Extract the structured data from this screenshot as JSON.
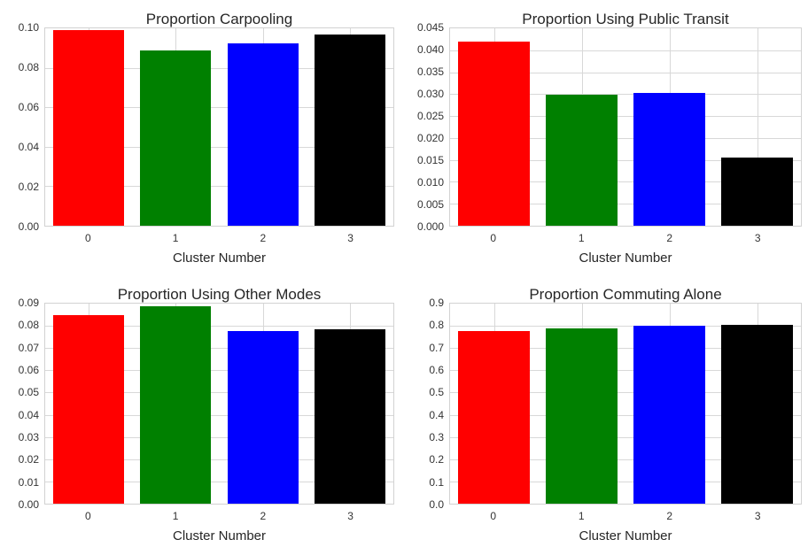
{
  "figure": {
    "background_color": "#ffffff",
    "grid_color": "#d8d8d8",
    "spine_color": "#d2d2d2",
    "text_color": "#262626",
    "tick_label_color": "#333333",
    "layout": "2x2 subplots, seaborn whitegrid style"
  },
  "chart_data": [
    {
      "type": "bar",
      "title": "Proportion Carpooling",
      "xlabel": "Cluster Number",
      "ylabel": "",
      "categories": [
        "0",
        "1",
        "2",
        "3"
      ],
      "values": [
        0.099,
        0.089,
        0.0925,
        0.097
      ],
      "bar_colors": [
        "#ff0000",
        "#008000",
        "#0000ff",
        "#000000"
      ],
      "ylim": [
        0,
        0.1
      ],
      "ytick_labels": [
        "0.00",
        "0.02",
        "0.04",
        "0.06",
        "0.08",
        "0.10"
      ],
      "grid": "on",
      "legend": "none"
    },
    {
      "type": "bar",
      "title": "Proportion Using Public Transit",
      "xlabel": "Cluster Number",
      "ylabel": "",
      "categories": [
        "0",
        "1",
        "2",
        "3"
      ],
      "values": [
        0.042,
        0.0298,
        0.0302,
        0.0155
      ],
      "bar_colors": [
        "#ff0000",
        "#008000",
        "#0000ff",
        "#000000"
      ],
      "ylim": [
        0,
        0.045
      ],
      "ytick_labels": [
        "0.000",
        "0.005",
        "0.010",
        "0.015",
        "0.020",
        "0.025",
        "0.030",
        "0.035",
        "0.040",
        "0.045"
      ],
      "grid": "on",
      "legend": "none"
    },
    {
      "type": "bar",
      "title": "Proportion Using Other Modes",
      "xlabel": "Cluster Number",
      "ylabel": "",
      "categories": [
        "0",
        "1",
        "2",
        "3"
      ],
      "values": [
        0.085,
        0.089,
        0.0775,
        0.0785
      ],
      "bar_colors": [
        "#ff0000",
        "#008000",
        "#0000ff",
        "#000000"
      ],
      "ylim": [
        0,
        0.09
      ],
      "ytick_labels": [
        "0.00",
        "0.01",
        "0.02",
        "0.03",
        "0.04",
        "0.05",
        "0.06",
        "0.07",
        "0.08",
        "0.09"
      ],
      "grid": "on",
      "legend": "none"
    },
    {
      "type": "bar",
      "title": "Proportion Commuting Alone",
      "xlabel": "Cluster Number",
      "ylabel": "",
      "categories": [
        "0",
        "1",
        "2",
        "3"
      ],
      "values": [
        0.775,
        0.79,
        0.8,
        0.805
      ],
      "bar_colors": [
        "#ff0000",
        "#008000",
        "#0000ff",
        "#000000"
      ],
      "ylim": [
        0,
        0.9
      ],
      "ytick_labels": [
        "0.0",
        "0.1",
        "0.2",
        "0.3",
        "0.4",
        "0.5",
        "0.6",
        "0.7",
        "0.8",
        "0.9"
      ],
      "grid": "on",
      "legend": "none"
    }
  ]
}
